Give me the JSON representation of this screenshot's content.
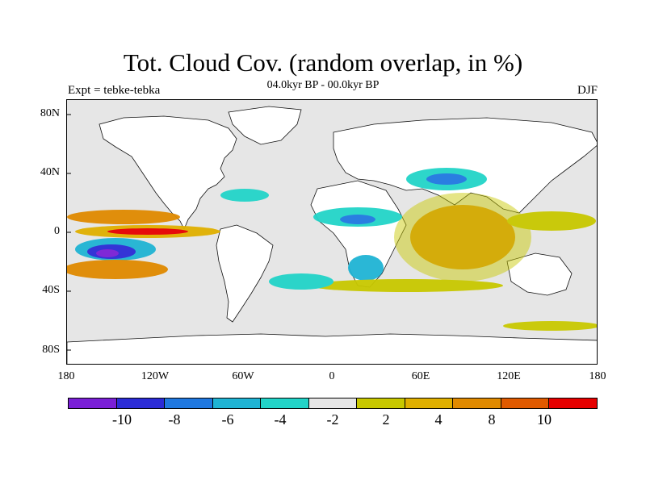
{
  "title": "Tot. Cloud Cov. (random overlap, in %)",
  "subtitle": "04.0kyr BP - 00.0kyr BP",
  "experiment": "Expt = tebke-tebka",
  "season": "DJF",
  "map": {
    "projection": "cylindrical-equidistant",
    "lat_labels": [
      "80N",
      "40N",
      "0",
      "40S",
      "80S"
    ],
    "lon_labels": [
      "180",
      "120W",
      "60W",
      "0",
      "60E",
      "120E",
      "180"
    ],
    "land_color": "#ffffff",
    "ocean_color": "#e6e6e6"
  },
  "colorbar": {
    "colors": [
      "#7a1fd6",
      "#2b2bd6",
      "#1f78e0",
      "#1fb4d4",
      "#22d4c8",
      "#e6e6e6",
      "#c8c800",
      "#e0b000",
      "#e08a00",
      "#e05a00",
      "#e60000"
    ],
    "labels": [
      "-10",
      "-8",
      "-6",
      "-4",
      "-2",
      "2",
      "4",
      "8",
      "10"
    ]
  }
}
